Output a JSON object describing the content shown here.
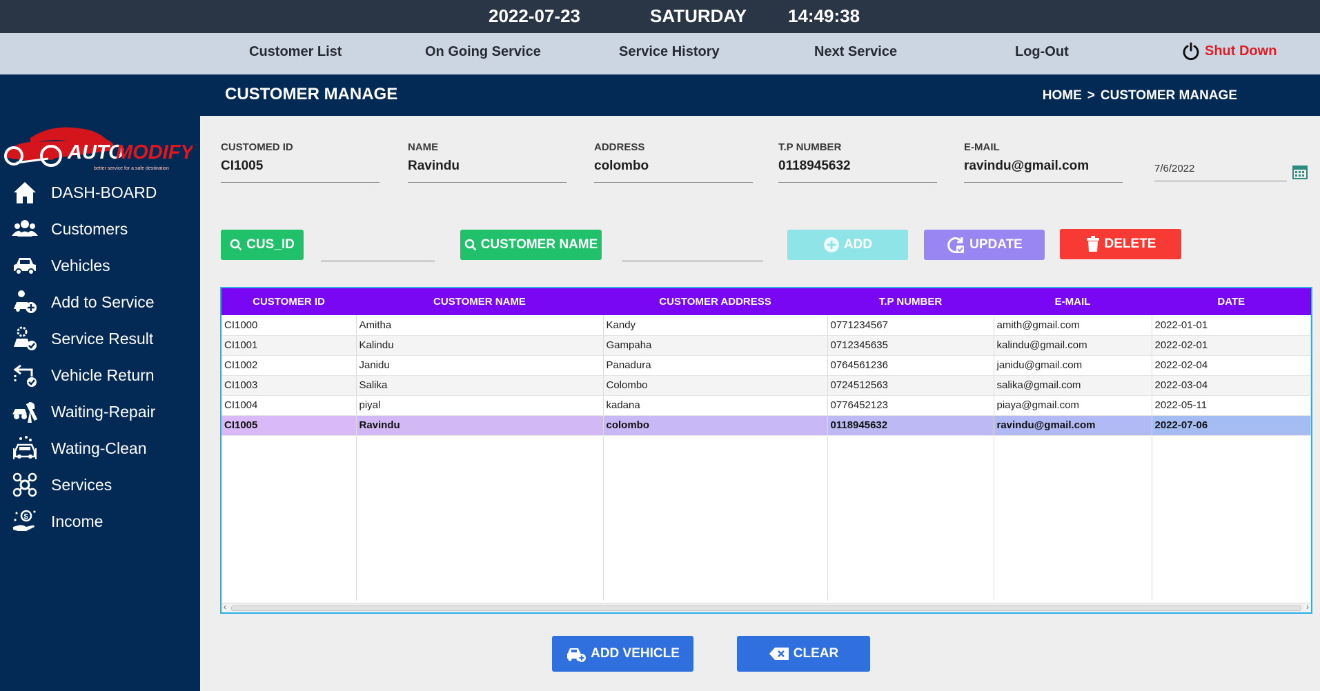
{
  "topbar": {
    "date": "2022-07-23",
    "day": "SATURDAY",
    "time": "14:49:38"
  },
  "nav": {
    "customer_list": "Customer List",
    "ongoing_service": "On Going Service",
    "service_history": "Service History",
    "next_service": "Next Service",
    "logout": "Log-Out",
    "shutdown": "Shut Down"
  },
  "logo": {
    "word1": "AUTO",
    "word2": "MODIFY",
    "tagline": "better service for a safe destination"
  },
  "sidebar": {
    "items": [
      {
        "label": "DASH-BOARD",
        "icon": "home-icon"
      },
      {
        "label": "Customers",
        "icon": "users-icon"
      },
      {
        "label": "Vehicles",
        "icon": "car-icon"
      },
      {
        "label": "Add to Service",
        "icon": "add-service-icon"
      },
      {
        "label": "Service Result",
        "icon": "service-result-icon"
      },
      {
        "label": "Vehicle Return",
        "icon": "vehicle-return-icon"
      },
      {
        "label": "Waiting-Repair",
        "icon": "repair-icon"
      },
      {
        "label": "Wating-Clean",
        "icon": "clean-icon"
      },
      {
        "label": "Services",
        "icon": "services-icon"
      },
      {
        "label": "Income",
        "icon": "income-icon"
      }
    ]
  },
  "header": {
    "title": "CUSTOMER MANAGE",
    "crumb_home": "HOME",
    "crumb_sep": ">",
    "crumb_current": "CUSTOMER MANAGE"
  },
  "form": {
    "id_label": "CUSTOMED ID",
    "id_value": "CI1005",
    "name_label": "NAME",
    "name_value": "Ravindu",
    "address_label": "ADDRESS",
    "address_value": "colombo",
    "tp_label": "T.P NUMBER",
    "tp_value": "0118945632",
    "email_label": "E-MAIL",
    "email_value": "ravindu@gmail.com",
    "date_value": "7/6/2022"
  },
  "actions": {
    "search_id": "CUS_ID",
    "search_name": "CUSTOMER NAME",
    "add": "ADD",
    "update": "UPDATE",
    "delete": "DELETE",
    "add_vehicle": "ADD VEHICLE",
    "clear": "CLEAR"
  },
  "colors": {
    "nav_bg": "#ccd6e2",
    "sidebar_bg": "#032a55",
    "table_header": "#7a07f3",
    "shutdown": "#e31b23",
    "search_green": "#21c16b",
    "add_teal": "#8ee4e6",
    "update_violet": "#9a86f2",
    "delete_red": "#f73b34",
    "primary_blue": "#2f6fde"
  },
  "table": {
    "columns": [
      "CUSTOMER ID",
      "CUSTOMER NAME",
      "CUSTOMER ADDRESS",
      "T.P NUMBER",
      "E-MAIL",
      "DATE"
    ],
    "rows": [
      [
        "CI1000",
        "Amitha",
        "Kandy",
        "0771234567",
        "amith@gmail.com",
        "2022-01-01"
      ],
      [
        "CI1001",
        "Kalindu",
        "Gampaha",
        "0712345635",
        "kalindu@gmail.com",
        "2022-02-01"
      ],
      [
        "CI1002",
        "Janidu",
        "Panadura",
        "0764561236",
        "janidu@gmail.com",
        "2022-02-04"
      ],
      [
        "CI1003",
        "Salika",
        "Colombo",
        "0724512563",
        "salika@gmail.com",
        "2022-03-04"
      ],
      [
        "CI1004",
        "piyal",
        "kadana",
        "0776452123",
        "piaya@gmail.com",
        "2022-05-11"
      ],
      [
        "CI1005",
        "Ravindu",
        "colombo",
        "0118945632",
        "ravindu@gmail.com",
        "2022-07-06"
      ]
    ],
    "selected_index": 5
  }
}
